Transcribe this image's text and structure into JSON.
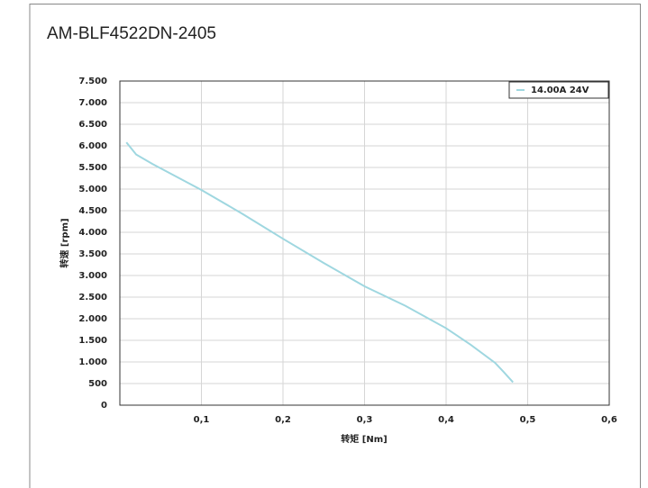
{
  "chart_data": {
    "type": "line",
    "title": "AM-BLF4522DN-2405",
    "x_label": "转矩 [Nm]",
    "y_label": "转速 [rpm]",
    "x": [
      0.008,
      0.02,
      0.04,
      0.06,
      0.1,
      0.15,
      0.2,
      0.25,
      0.3,
      0.35,
      0.4,
      0.43,
      0.46,
      0.47,
      0.482
    ],
    "series": [
      {
        "name": "14.00A 24V",
        "color": "#9fd7e0",
        "values": [
          6080,
          5800,
          5580,
          5380,
          4980,
          4430,
          3850,
          3290,
          2750,
          2300,
          1780,
          1400,
          980,
          780,
          530
        ]
      }
    ],
    "xlim": [
      0,
      0.6
    ],
    "xticks": [
      {
        "value": 0.1,
        "label": "0,1"
      },
      {
        "value": 0.2,
        "label": "0,2"
      },
      {
        "value": 0.3,
        "label": "0,3"
      },
      {
        "value": 0.4,
        "label": "0,4"
      },
      {
        "value": 0.5,
        "label": "0,5"
      },
      {
        "value": 0.6,
        "label": "0,6"
      }
    ],
    "ylim": [
      0,
      7500
    ],
    "yticks": [
      0,
      500,
      {
        "value": 1000,
        "label": "1.000"
      },
      {
        "value": 1500,
        "label": "1.500"
      },
      {
        "value": 2000,
        "label": "2.000"
      },
      {
        "value": 2500,
        "label": "2.500"
      },
      {
        "value": 3000,
        "label": "3.000"
      },
      {
        "value": 3500,
        "label": "3.500"
      },
      {
        "value": 4000,
        "label": "4.000"
      },
      {
        "value": 4500,
        "label": "4.500"
      },
      {
        "value": 5000,
        "label": "5.000"
      },
      {
        "value": 5500,
        "label": "5.500"
      },
      {
        "value": 6000,
        "label": "6.000"
      },
      {
        "value": 6500,
        "label": "6.500"
      },
      {
        "value": 7000,
        "label": "7.000"
      },
      {
        "value": 7500,
        "label": "7.500"
      }
    ],
    "grid": true,
    "legend": "upper right"
  }
}
